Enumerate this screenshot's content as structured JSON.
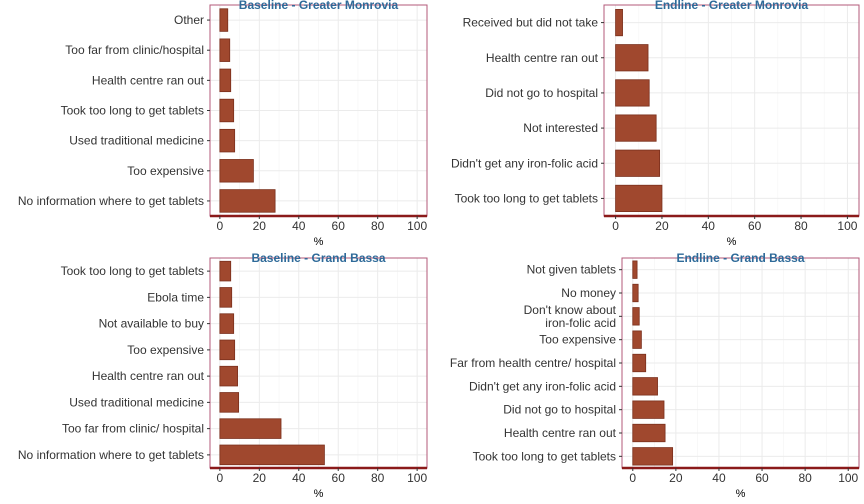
{
  "chart_data": [
    {
      "type": "bar",
      "orientation": "horizontal",
      "title": "Baseline - Greater Monrovia",
      "xlabel": "%",
      "xlim": [
        -5,
        105
      ],
      "xticks": [
        0,
        20,
        40,
        60,
        80,
        100
      ],
      "grid": true,
      "categories": [
        "Other",
        "Too far from clinic/hospital",
        "Health centre ran out",
        "Took too long to get tablets",
        "Used traditional medicine",
        "Too expensive",
        "No information where to get tablets"
      ],
      "values": [
        4,
        5,
        5.5,
        7,
        7.5,
        17,
        28
      ]
    },
    {
      "type": "bar",
      "orientation": "horizontal",
      "title": "Endline - Greater Monrovia",
      "xlabel": "%",
      "xlim": [
        -5,
        105
      ],
      "xticks": [
        0,
        20,
        40,
        60,
        80,
        100
      ],
      "grid": true,
      "categories": [
        "Received but did not take",
        "Health centre ran out",
        "Did not go to hospital",
        "Not interested",
        "Didn't get any iron-folic acid",
        "Took too long to get tablets"
      ],
      "values": [
        3,
        14,
        14.5,
        17.5,
        19,
        20
      ]
    },
    {
      "type": "bar",
      "orientation": "horizontal",
      "title": "Baseline - Grand Bassa",
      "xlabel": "%",
      "xlim": [
        -5,
        105
      ],
      "xticks": [
        0,
        20,
        40,
        60,
        80,
        100
      ],
      "grid": true,
      "categories": [
        "Took too long to get tablets",
        "Ebola time",
        "Not available to buy",
        "Too expensive",
        "Health centre ran out",
        "Used traditional medicine",
        "Too far from clinic/ hospital",
        "No information where to get tablets"
      ],
      "values": [
        5.5,
        6,
        7,
        7.5,
        9,
        9.5,
        31,
        53
      ]
    },
    {
      "type": "bar",
      "orientation": "horizontal",
      "title": "Endline - Grand Bassa",
      "xlabel": "%",
      "xlim": [
        -5,
        105
      ],
      "xticks": [
        0,
        20,
        40,
        60,
        80,
        100
      ],
      "grid": true,
      "categories": [
        "Not given tablets",
        "No money",
        "Don't know about\niron-folic acid",
        "Too expensive",
        "Far from health centre/ hospital",
        "Didn't get any iron-folic acid",
        "Did not go to hospital",
        "Health centre ran out",
        "Took too long to get tablets"
      ],
      "values": [
        2,
        2.5,
        3,
        4,
        6,
        11.5,
        14.5,
        15,
        18.5
      ]
    }
  ],
  "colors": {
    "bar_fill": "#a0482e",
    "bar_stroke": "#7a2f1c",
    "title": "#2e6a99",
    "panel_border": "#b35a78",
    "baseline": "#8b1a1a",
    "grid": "#ebebeb",
    "text": "#333333"
  }
}
